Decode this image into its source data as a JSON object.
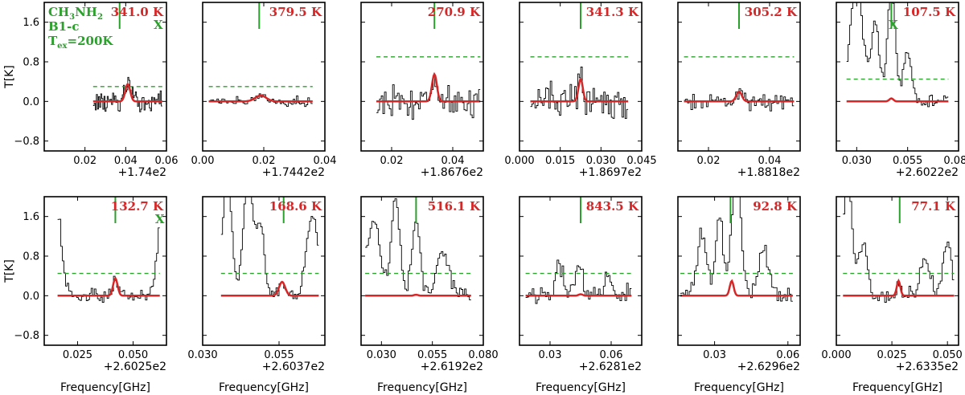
{
  "chart_data": {
    "type": "line",
    "figure": "CH3NH2 spectral line panels",
    "ylabel": "T[K]",
    "xlabel": "Frequency[GHz]",
    "ylim": [
      -1.0,
      2.0
    ],
    "y_ticks": [
      -0.8,
      0.0,
      0.8,
      1.6
    ],
    "y_tick_labels": [
      "−0.8",
      "0.0",
      "0.8",
      "1.6"
    ],
    "annotation": {
      "molecule": "CH",
      "sub3": "3",
      "nh": "NH",
      "sub2": "2",
      "source": "B1-c",
      "tex_T": "T",
      "tex_sub": "ex",
      "tex_val": "=200K"
    },
    "colors": {
      "data": "#000000",
      "model": "#d62728",
      "threshold": "#2ca02c",
      "marker": "#2ca02c",
      "temp_label": "#d62728"
    },
    "panels": [
      {
        "id": "p1",
        "temp": "341.0 K",
        "x_offset": "+1.74e2",
        "xlim": [
          0.0,
          0.06
        ],
        "x_ticks": [
          0.02,
          0.04,
          0.06
        ],
        "x_tick_labels": [
          "0.02",
          "0.04",
          "0.06"
        ],
        "data_range": [
          0.024,
          0.058
        ],
        "line_center": 0.041,
        "marker": 0.037,
        "model_peak": 0.35,
        "model_width": 0.0012,
        "dashed": 0.3,
        "x_mark": "X",
        "x_mark_pos": 0.056,
        "noise": 0.28,
        "blend": []
      },
      {
        "id": "p2",
        "temp": "379.5 K",
        "x_offset": "+1.7442e2",
        "xlim": [
          0.0,
          0.04
        ],
        "x_ticks": [
          0.0,
          0.02,
          0.04
        ],
        "x_tick_labels": [
          "0.00",
          "0.02",
          "0.04"
        ],
        "data_range": [
          0.002,
          0.036
        ],
        "line_center": 0.019,
        "marker": 0.0185,
        "model_peak": 0.12,
        "model_width": 0.0018,
        "dashed": 0.3,
        "x_mark": "",
        "noise": 0.12,
        "blend": []
      },
      {
        "id": "p3",
        "temp": "270.9 K",
        "x_offset": "+1.8676e2",
        "xlim": [
          0.01,
          0.05
        ],
        "x_ticks": [
          0.02,
          0.04
        ],
        "x_tick_labels": [
          "0.02",
          "0.04"
        ],
        "data_range": [
          0.015,
          0.049
        ],
        "line_center": 0.034,
        "marker": 0.034,
        "model_peak": 0.55,
        "model_width": 0.0008,
        "dashed": 0.9,
        "x_mark": "",
        "noise": 0.38,
        "blend": []
      },
      {
        "id": "p4",
        "temp": "341.3 K",
        "x_offset": "+1.8697e2",
        "xlim": [
          0.0,
          0.045
        ],
        "x_ticks": [
          0.0,
          0.015,
          0.03,
          0.045
        ],
        "x_tick_labels": [
          "0.000",
          "0.015",
          "0.030",
          "0.045"
        ],
        "data_range": [
          0.004,
          0.04
        ],
        "line_center": 0.0225,
        "marker": 0.0225,
        "model_peak": 0.45,
        "model_width": 0.0008,
        "dashed": 0.9,
        "x_mark": "",
        "noise": 0.42,
        "blend": []
      },
      {
        "id": "p5",
        "temp": "305.2 K",
        "x_offset": "+1.8818e2",
        "xlim": [
          0.01,
          0.05
        ],
        "x_ticks": [
          0.02,
          0.04
        ],
        "x_tick_labels": [
          "0.02",
          "0.04"
        ],
        "data_range": [
          0.012,
          0.048
        ],
        "line_center": 0.03,
        "marker": 0.03,
        "model_peak": 0.2,
        "model_width": 0.0009,
        "dashed": 0.9,
        "x_mark": "",
        "noise": 0.22,
        "blend": []
      },
      {
        "id": "p6",
        "temp": "107.5 K",
        "x_offset": "+2.6022e2",
        "xlim": [
          0.02,
          0.08
        ],
        "x_ticks": [
          0.03,
          0.055,
          0.08
        ],
        "x_tick_labels": [
          "0.030",
          "0.055",
          "0.080"
        ],
        "data_range": [
          0.025,
          0.075
        ],
        "line_center": 0.047,
        "marker": 0.047,
        "model_peak": 0.06,
        "model_width": 0.001,
        "dashed": 0.45,
        "x_mark": "X",
        "x_mark_pos": 0.048,
        "noise": 0.15,
        "blend": [
          [
            0.03,
            2.4,
            0.003
          ],
          [
            0.039,
            1.6,
            0.002
          ],
          [
            0.047,
            2.2,
            0.002
          ],
          [
            0.055,
            1.0,
            0.002
          ]
        ]
      },
      {
        "id": "p7",
        "temp": "132.7 K",
        "x_offset": "+2.6025e2",
        "xlim": [
          0.01,
          0.065
        ],
        "x_ticks": [
          0.025,
          0.05
        ],
        "x_tick_labels": [
          "0.025",
          "0.050"
        ],
        "data_range": [
          0.016,
          0.062
        ],
        "line_center": 0.042,
        "marker": 0.042,
        "model_peak": 0.35,
        "model_width": 0.001,
        "dashed": 0.45,
        "x_mark": "X",
        "x_mark_pos": 0.062,
        "noise": 0.18,
        "blend": [
          [
            0.016,
            1.6,
            0.002
          ],
          [
            0.063,
            1.6,
            0.002
          ]
        ]
      },
      {
        "id": "p8",
        "temp": "168.6 K",
        "x_offset": "+2.6037e2",
        "xlim": [
          0.03,
          0.07
        ],
        "x_ticks": [
          0.03,
          0.055
        ],
        "x_tick_labels": [
          "0.030",
          "0.055"
        ],
        "data_range": [
          0.036,
          0.068
        ],
        "line_center": 0.056,
        "marker": 0.0565,
        "model_peak": 0.28,
        "model_width": 0.001,
        "dashed": 0.45,
        "x_mark": "",
        "noise": 0.15,
        "blend": [
          [
            0.038,
            2.4,
            0.0015
          ],
          [
            0.045,
            2.4,
            0.0016
          ],
          [
            0.049,
            1.4,
            0.0012
          ],
          [
            0.066,
            1.6,
            0.002
          ]
        ]
      },
      {
        "id": "p9",
        "temp": "516.1 K",
        "x_offset": "+2.6192e2",
        "xlim": [
          0.02,
          0.08
        ],
        "x_ticks": [
          0.03,
          0.055,
          0.08
        ],
        "x_tick_labels": [
          "0.030",
          "0.055",
          "0.080"
        ],
        "data_range": [
          0.022,
          0.074
        ],
        "line_center": 0.047,
        "marker": 0.047,
        "model_peak": 0.02,
        "model_width": 0.001,
        "dashed": 0.45,
        "x_mark": "",
        "noise": 0.18,
        "blend": [
          [
            0.026,
            1.5,
            0.0035
          ],
          [
            0.037,
            2.0,
            0.002
          ],
          [
            0.047,
            1.5,
            0.002
          ],
          [
            0.06,
            0.9,
            0.003
          ]
        ]
      },
      {
        "id": "p10",
        "temp": "843.5 K",
        "x_offset": "+2.6281e2",
        "xlim": [
          0.015,
          0.075
        ],
        "x_ticks": [
          0.03,
          0.06
        ],
        "x_tick_labels": [
          "0.03",
          "0.06"
        ],
        "data_range": [
          0.018,
          0.07
        ],
        "line_center": 0.045,
        "marker": 0.045,
        "model_peak": 0.03,
        "model_width": 0.001,
        "dashed": 0.45,
        "x_mark": "",
        "noise": 0.28,
        "blend": [
          [
            0.035,
            0.6,
            0.002
          ],
          [
            0.045,
            0.5,
            0.002
          ],
          [
            0.058,
            0.4,
            0.002
          ]
        ]
      },
      {
        "id": "p11",
        "temp": "92.8 K",
        "x_offset": "+2.6296e2",
        "xlim": [
          0.015,
          0.065
        ],
        "x_ticks": [
          0.03,
          0.06
        ],
        "x_tick_labels": [
          "0.03",
          "0.06"
        ],
        "data_range": [
          0.016,
          0.062
        ],
        "line_center": 0.037,
        "marker": 0.0365,
        "model_peak": 0.3,
        "model_width": 0.0008,
        "dashed": 0.45,
        "x_mark": "",
        "noise": 0.22,
        "blend": [
          [
            0.025,
            1.3,
            0.002
          ],
          [
            0.032,
            1.6,
            0.0015
          ],
          [
            0.039,
            2.4,
            0.0018
          ],
          [
            0.05,
            1.0,
            0.002
          ]
        ]
      },
      {
        "id": "p12",
        "temp": "77.1 K",
        "x_offset": "+2.6335e2",
        "xlim": [
          0.0,
          0.055
        ],
        "x_ticks": [
          0.0,
          0.025,
          0.05
        ],
        "x_tick_labels": [
          "0.000",
          "0.025",
          "0.050"
        ],
        "data_range": [
          0.003,
          0.053
        ],
        "line_center": 0.028,
        "marker": 0.0285,
        "model_peak": 0.3,
        "model_width": 0.0008,
        "dashed": 0.45,
        "x_mark": "",
        "noise": 0.2,
        "blend": [
          [
            0.005,
            2.4,
            0.002
          ],
          [
            0.012,
            1.0,
            0.002
          ],
          [
            0.04,
            0.8,
            0.002
          ],
          [
            0.05,
            1.0,
            0.002
          ]
        ]
      }
    ]
  }
}
